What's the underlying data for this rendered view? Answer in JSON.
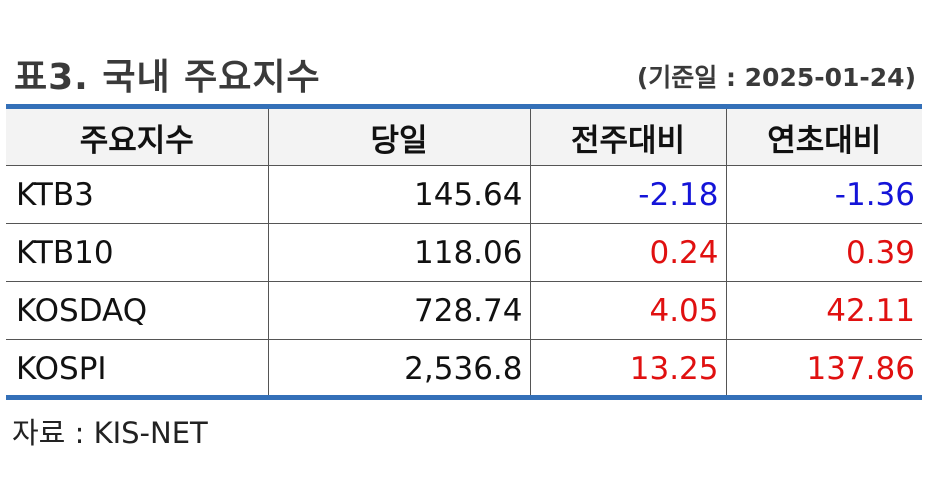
{
  "title": "표3. 국내 주요지수",
  "date": "(기준일 : 2025-01-24)",
  "colors": {
    "rule": "#3470b8",
    "negative": "#1414d8",
    "positive": "#e01010",
    "header_bg": "#f3f3f3"
  },
  "table": {
    "headers": [
      "주요지수",
      "당일",
      "전주대비",
      "연초대비"
    ],
    "rows": [
      {
        "name": "KTB3",
        "today": "145.64",
        "wow": "-2.18",
        "ytd": "-1.36"
      },
      {
        "name": "KTB10",
        "today": "118.06",
        "wow": "0.24",
        "ytd": "0.39"
      },
      {
        "name": "KOSDAQ",
        "today": "728.74",
        "wow": "4.05",
        "ytd": "42.11"
      },
      {
        "name": "KOSPI",
        "today": "2,536.8",
        "wow": "13.25",
        "ytd": "137.86"
      }
    ]
  },
  "source": "자료 : KIS-NET"
}
